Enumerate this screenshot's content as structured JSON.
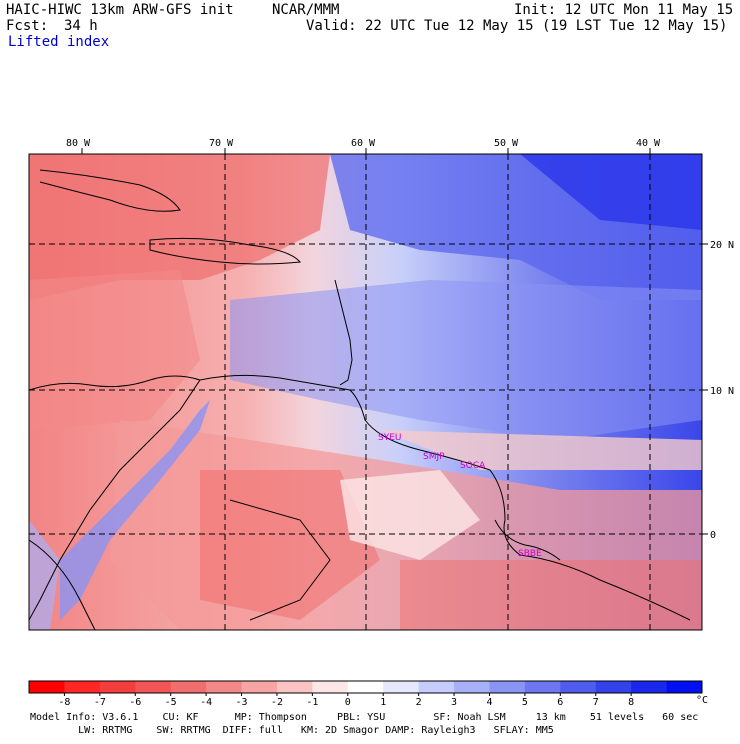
{
  "header": {
    "model_title": "HAIC-HIWC 13km ARW-GFS init",
    "org": "NCAR/MMM",
    "init": "Init: 12 UTC Mon 11 May 15",
    "fcst_label": "Fcst:",
    "fcst_value": "34 h",
    "valid": "Valid: 22 UTC Tue 12 May 15 (19 LST Tue 12 May 15)",
    "field": "Lifted index"
  },
  "map": {
    "lon_labels": [
      "80 W",
      "70 W",
      "60 W",
      "50 W",
      "40 W"
    ],
    "lat_labels": [
      "20 N",
      "10 N",
      "0"
    ],
    "stations": [
      "SYEU",
      "SMJP",
      "SOCA",
      "SBBE"
    ]
  },
  "colorbar": {
    "ticks": [
      "-8",
      "-7",
      "-6",
      "-5",
      "-4",
      "-3",
      "-2",
      "-1",
      "0",
      "1",
      "2",
      "3",
      "4",
      "5",
      "6",
      "7",
      "8"
    ],
    "unit": "°C",
    "colors": [
      "#ff0000",
      "#ff2626",
      "#f43d3d",
      "#f25555",
      "#f06e6e",
      "#f38888",
      "#f6a4a4",
      "#fac4c4",
      "#fde6e6",
      "#ffffff",
      "#e6e8fe",
      "#c6ccfc",
      "#a8b0f8",
      "#8a94f4",
      "#6d78f0",
      "#505cee",
      "#3442ec",
      "#1a28ee",
      "#0010f2"
    ]
  },
  "footer": {
    "line1": "Model Info: V3.6.1    CU: KF      MP: Thompson     PBL: YSU        SF: Noah LSM     13 km    51 levels   60 sec",
    "line2": "        LW: RRTMG    SW: RRTMG  DIFF: full   KM: 2D Smagor DAMP: Rayleigh3   SFLAY: MM5"
  }
}
